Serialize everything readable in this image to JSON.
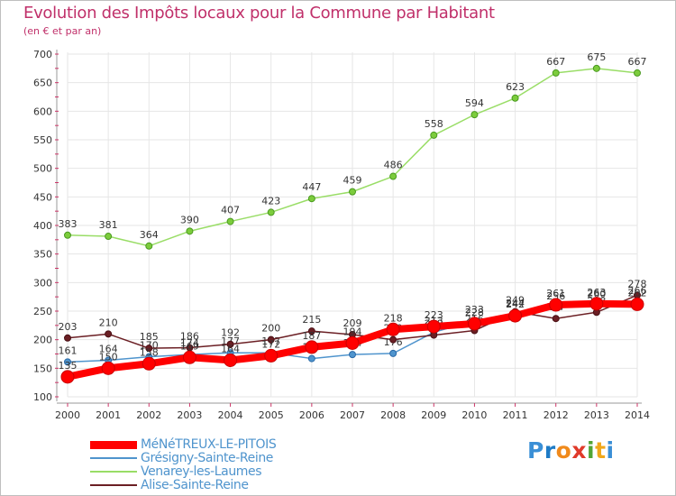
{
  "header": {
    "title": "Evolution des Impôts locaux pour la Commune par Habitant",
    "subtitle": "(en € et par an)"
  },
  "chart_data": {
    "type": "line",
    "title": "Evolution des Impôts locaux pour la Commune par Habitant",
    "ylabel": "(en € et par an)",
    "xlabel": "",
    "x": [
      "2000",
      "2001",
      "2002",
      "2003",
      "2004",
      "2005",
      "2006",
      "2007",
      "2008",
      "2009",
      "2010",
      "2011",
      "2012",
      "2013",
      "2014"
    ],
    "y_ticks": [
      "100",
      "150",
      "200",
      "250",
      "300",
      "350",
      "400",
      "450",
      "500",
      "550",
      "600",
      "650",
      "700"
    ],
    "ylim": [
      100,
      700
    ],
    "grid": true,
    "legend_position": "bottom-left",
    "series": [
      {
        "name": "Grésigny-Sainte-Reine",
        "color": "#4f94cd",
        "values": [
          161,
          164,
          170,
          174,
          177,
          177,
          167,
          174,
          176,
          213,
          233,
          244,
          256,
          260,
          266
        ],
        "labels": [
          "161",
          "164",
          "170",
          "174",
          "177",
          "177",
          "167",
          "174",
          "176",
          "213",
          "233",
          "244",
          "256",
          "260",
          "266"
        ]
      },
      {
        "name": "Venarey-les-Laumes",
        "color": "#99dd66",
        "values": [
          383,
          381,
          364,
          390,
          407,
          423,
          447,
          459,
          486,
          558,
          594,
          623,
          667,
          675,
          667
        ],
        "labels": [
          "383",
          "381",
          "364",
          "390",
          "407",
          "423",
          "447",
          "459",
          "486",
          "558",
          "594",
          "623",
          "667",
          "675",
          "667"
        ]
      },
      {
        "name": "Alise-Sainte-Reine",
        "color": "#6b1f24",
        "values": [
          203,
          210,
          185,
          186,
          192,
          200,
          215,
          209,
          200,
          208,
          216,
          249,
          237,
          248,
          278
        ],
        "labels": [
          "203",
          "210",
          "185",
          "186",
          "192",
          "200",
          "215",
          "209",
          "200",
          "208",
          "216",
          "249",
          "237",
          "248",
          "278"
        ]
      },
      {
        "name": "MéNéTREUX-LE-PITOIS",
        "color": "#ff0000",
        "values": [
          135,
          150,
          158,
          169,
          164,
          172,
          187,
          194,
          218,
          223,
          228,
          242,
          261,
          263,
          262
        ],
        "labels": [
          "135",
          "150",
          "158",
          "169",
          "164",
          "172",
          "187",
          "194",
          "218",
          "223",
          "228",
          "242",
          "261",
          "263",
          "262"
        ]
      }
    ]
  },
  "legend": [
    {
      "name": "MéNéTREUX-LE-PITOIS",
      "color": "#ff0000",
      "stroke": 9
    },
    {
      "name": "Grésigny-Sainte-Reine",
      "color": "#4f94cd",
      "stroke": 2
    },
    {
      "name": "Venarey-les-Laumes",
      "color": "#99dd66",
      "stroke": 2
    },
    {
      "name": "Alise-Sainte-Reine",
      "color": "#6b1f24",
      "stroke": 2
    }
  ],
  "logo": {
    "letters": [
      "P",
      "r",
      "o",
      "x",
      "i",
      "t",
      "i"
    ],
    "colors": [
      "#3a8fd6",
      "#1e7bc6",
      "#f08a1c",
      "#e03a2a",
      "#52a535",
      "#f0a81c",
      "#3a8fd6"
    ]
  }
}
